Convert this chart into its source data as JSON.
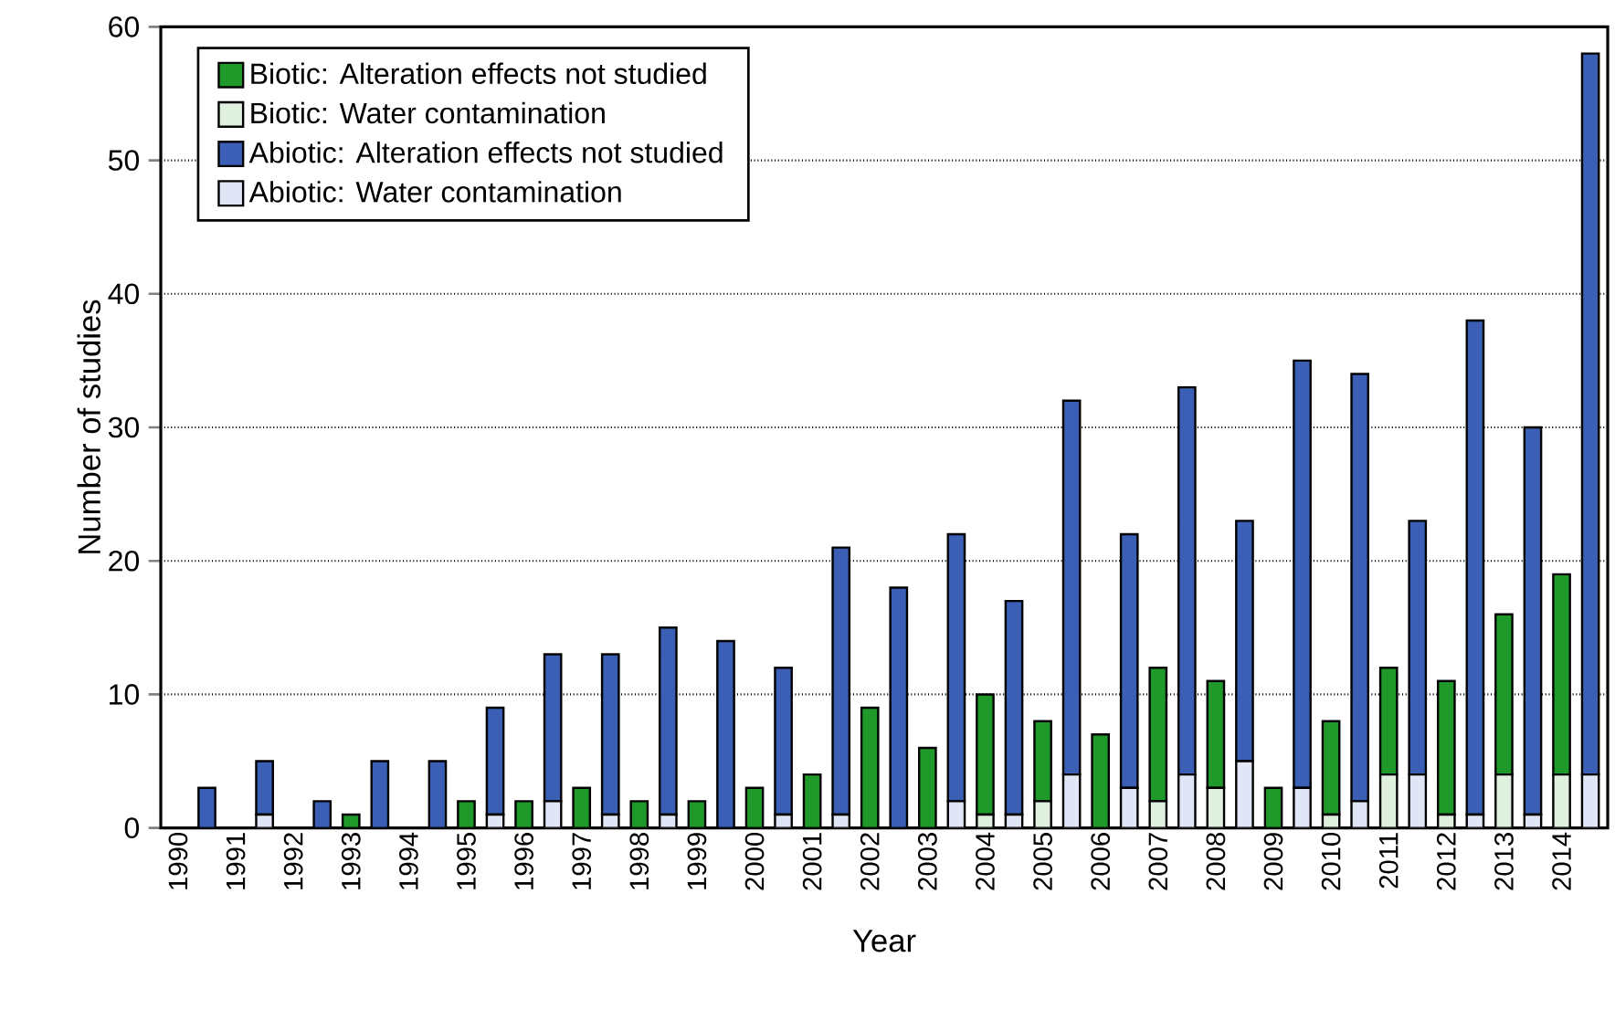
{
  "chart_data": {
    "type": "bar",
    "stacked": true,
    "xlabel": "Year",
    "ylabel": "Number of studies",
    "categories": [
      "1990",
      null,
      "1991",
      null,
      "1992",
      null,
      "1993",
      null,
      "1994",
      null,
      "1995",
      null,
      "1996",
      null,
      "1997",
      null,
      "1998",
      null,
      "1999",
      null,
      "2000",
      null,
      "2001",
      null,
      "2002",
      null,
      "2003",
      null,
      "2004",
      null,
      "2005",
      null,
      "2006",
      null,
      "2007",
      null,
      "2008",
      null,
      "2009",
      null,
      "2010",
      null,
      "2011",
      null,
      "2012",
      null,
      "2013",
      null,
      "2014",
      null
    ],
    "series": [
      {
        "name": "Biotic:  Water contamination",
        "color": "#dff0df",
        "values": [
          0,
          null,
          0,
          null,
          0,
          null,
          0,
          null,
          0,
          null,
          0,
          null,
          0,
          null,
          0,
          null,
          0,
          null,
          0,
          null,
          0,
          null,
          0,
          null,
          0,
          null,
          0,
          null,
          1,
          null,
          2,
          null,
          0,
          null,
          2,
          null,
          3,
          null,
          0,
          null,
          1,
          null,
          4,
          null,
          1,
          null,
          4,
          null,
          4,
          null
        ]
      },
      {
        "name": "Biotic:  Alteration effects not studied",
        "color": "#1f9a2a",
        "values": [
          0,
          null,
          0,
          null,
          0,
          null,
          1,
          null,
          0,
          null,
          2,
          null,
          2,
          null,
          3,
          null,
          2,
          null,
          2,
          null,
          3,
          null,
          4,
          null,
          9,
          null,
          6,
          null,
          9,
          null,
          6,
          null,
          7,
          null,
          10,
          null,
          8,
          null,
          3,
          null,
          7,
          null,
          8,
          null,
          10,
          null,
          12,
          null,
          15,
          null
        ]
      },
      {
        "name": "Abiotic:  Water contamination",
        "color": "#e0e6f5",
        "values": [
          null,
          0,
          null,
          1,
          null,
          0,
          null,
          0,
          null,
          0,
          null,
          1,
          null,
          2,
          null,
          1,
          null,
          1,
          null,
          0,
          null,
          1,
          null,
          1,
          null,
          0,
          null,
          2,
          null,
          1,
          null,
          4,
          null,
          3,
          null,
          4,
          null,
          5,
          null,
          3,
          null,
          2,
          null,
          4,
          null,
          1,
          null,
          1,
          null,
          4
        ]
      },
      {
        "name": "Abiotic:  Alteration effects not studied",
        "color": "#3a5fb5",
        "values": [
          null,
          3,
          null,
          4,
          null,
          2,
          null,
          5,
          null,
          5,
          null,
          8,
          null,
          11,
          null,
          12,
          null,
          14,
          null,
          14,
          null,
          11,
          null,
          20,
          null,
          18,
          null,
          20,
          null,
          16,
          null,
          28,
          null,
          19,
          null,
          29,
          null,
          18,
          null,
          32,
          null,
          32,
          null,
          19,
          null,
          37,
          null,
          29,
          null,
          54
        ]
      }
    ],
    "ylim": [
      0,
      60
    ],
    "yticks": [
      0,
      10,
      20,
      30,
      40,
      50,
      60
    ],
    "grid": "y",
    "legend": "top left"
  }
}
